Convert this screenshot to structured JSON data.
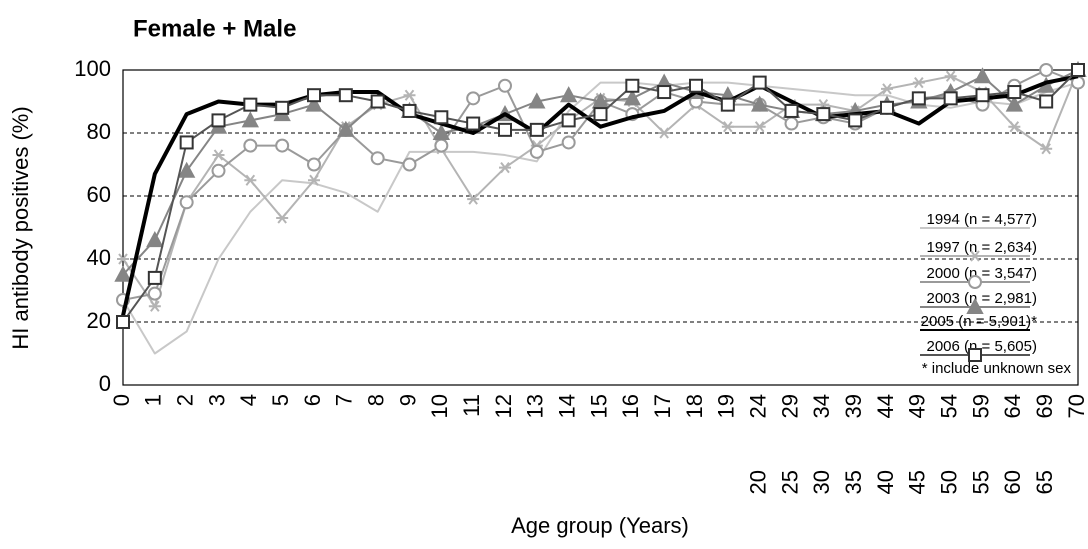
{
  "chart_data": {
    "type": "line",
    "title": "Female + Male",
    "x_label": "Age group (Years)",
    "y_label": "HI antibody positives (%)",
    "categories": [
      [
        "0"
      ],
      [
        "1"
      ],
      [
        "2"
      ],
      [
        "3"
      ],
      [
        "4"
      ],
      [
        "5"
      ],
      [
        "6"
      ],
      [
        "7"
      ],
      [
        "8"
      ],
      [
        "9"
      ],
      [
        "10"
      ],
      [
        "11"
      ],
      [
        "12"
      ],
      [
        "13"
      ],
      [
        "14"
      ],
      [
        "15"
      ],
      [
        "16"
      ],
      [
        "17"
      ],
      [
        "18"
      ],
      [
        "19"
      ],
      [
        "24",
        "20"
      ],
      [
        "29",
        "25"
      ],
      [
        "34",
        "30"
      ],
      [
        "39",
        "35"
      ],
      [
        "44",
        "40"
      ],
      [
        "49",
        "45"
      ],
      [
        "54",
        "50"
      ],
      [
        "59",
        "55"
      ],
      [
        "64",
        "60"
      ],
      [
        "69",
        "65"
      ],
      [
        "70"
      ]
    ],
    "ylim": [
      0,
      100
    ],
    "yticks": [
      0,
      20,
      40,
      60,
      80,
      100
    ],
    "grid": true,
    "series": [
      {
        "name": "1994 (n = 4,577)",
        "color": "#c8c8c8",
        "marker": "none",
        "line_width": 2,
        "values": [
          27,
          10,
          17,
          40,
          55,
          65,
          64,
          61,
          55,
          74,
          74,
          74,
          73,
          71,
          87,
          96,
          96,
          95,
          96,
          96,
          95,
          94,
          93,
          92,
          92,
          89,
          88,
          90,
          89,
          93,
          96
        ]
      },
      {
        "name": "1997 (n = 2,634)",
        "color": "#b4b4b4",
        "marker": "asterisk",
        "line_width": 2,
        "values": [
          40,
          25,
          58,
          73,
          65,
          53,
          65,
          82,
          89,
          92,
          75,
          59,
          69,
          76,
          84,
          91,
          90,
          80,
          89,
          82,
          82,
          89,
          89,
          87,
          94,
          96,
          98,
          93,
          82,
          75,
          100
        ]
      },
      {
        "name": "2000 (n = 3,547)",
        "color": "#9a9a9a",
        "marker": "circle",
        "line_width": 2,
        "values": [
          27,
          29,
          58,
          68,
          76,
          76,
          70,
          81,
          72,
          70,
          76,
          91,
          95,
          74,
          77,
          90,
          86,
          93,
          90,
          89,
          89,
          83,
          85,
          83,
          88,
          91,
          92,
          89,
          95,
          100,
          96
        ]
      },
      {
        "name": "2003 (n = 2,981)",
        "color": "#858585",
        "marker": "triangle",
        "line_width": 2,
        "values": [
          35,
          46,
          68,
          82,
          84,
          86,
          89,
          81,
          90,
          87,
          80,
          82,
          86,
          90,
          92,
          90,
          91,
          96,
          93,
          92,
          89,
          87,
          86,
          87,
          89,
          90,
          93,
          98,
          89,
          95,
          100
        ]
      },
      {
        "name": "2005 (n = 5,901)*",
        "color": "#000000",
        "marker": "none",
        "line_width": 4,
        "values": [
          22,
          67,
          86,
          90,
          89,
          89,
          92,
          93,
          93,
          86,
          83,
          80,
          86,
          80,
          89,
          82,
          85,
          87,
          93,
          90,
          95,
          90,
          85,
          86,
          87,
          83,
          90,
          91,
          92,
          96,
          98
        ]
      },
      {
        "name": "2006 (n = 5,605)",
        "color": "#555555",
        "marker": "square",
        "line_width": 2,
        "values": [
          20,
          34,
          77,
          84,
          89,
          88,
          92,
          92,
          90,
          87,
          85,
          83,
          81,
          81,
          84,
          86,
          95,
          93,
          95,
          89,
          96,
          87,
          86,
          84,
          88,
          91,
          91,
          92,
          93,
          90,
          100
        ]
      }
    ],
    "annotation": "* include unknown sex"
  }
}
